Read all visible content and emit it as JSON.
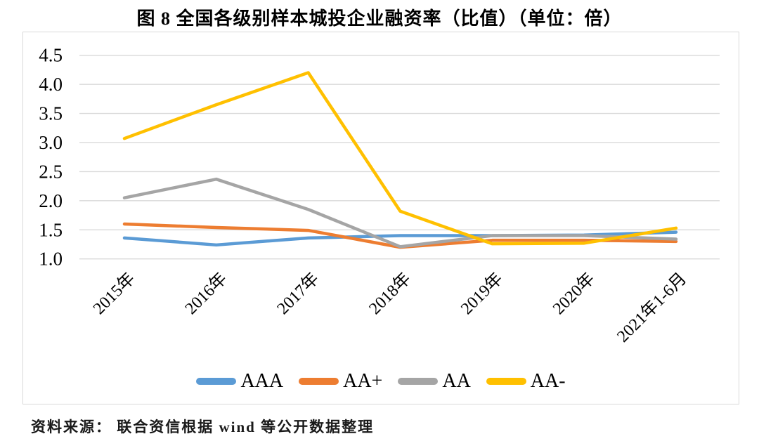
{
  "title": "图 8  全国各级别样本城投企业融资率（比值）（单位：倍）",
  "source_note": "资料来源： 联合资信根据 wind 等公开数据整理",
  "colors": {
    "grid": "#D9D9D9",
    "border": "#D9D9D9",
    "text": "#000000"
  },
  "chart_data": {
    "type": "line",
    "title": "图 8  全国各级别样本城投企业融资率（比值）（单位：倍）",
    "unit": "倍",
    "categories": [
      "2015年",
      "2016年",
      "2017年",
      "2018年",
      "2019年",
      "2020年",
      "2021年1-6月"
    ],
    "series": [
      {
        "name": "AAA",
        "color": "#5B9BD5",
        "values": [
          1.36,
          1.24,
          1.36,
          1.4,
          1.4,
          1.41,
          1.46
        ]
      },
      {
        "name": "AA+",
        "color": "#ED7D31",
        "values": [
          1.6,
          1.54,
          1.49,
          1.2,
          1.32,
          1.32,
          1.3
        ]
      },
      {
        "name": "AA",
        "color": "#A5A5A5",
        "values": [
          2.05,
          2.37,
          1.85,
          1.21,
          1.4,
          1.4,
          1.34
        ]
      },
      {
        "name": "AA-",
        "color": "#FFC000",
        "values": [
          3.07,
          3.65,
          4.2,
          1.82,
          1.26,
          1.27,
          1.53
        ]
      }
    ],
    "ylim": [
      1.0,
      4.5
    ],
    "ytick_step": 0.5,
    "yticks": [
      "4.5",
      "4.0",
      "3.5",
      "3.0",
      "2.5",
      "2.0",
      "1.5",
      "1.0"
    ],
    "grid": true,
    "legend_position": "bottom",
    "x_label_rotation": -45
  }
}
